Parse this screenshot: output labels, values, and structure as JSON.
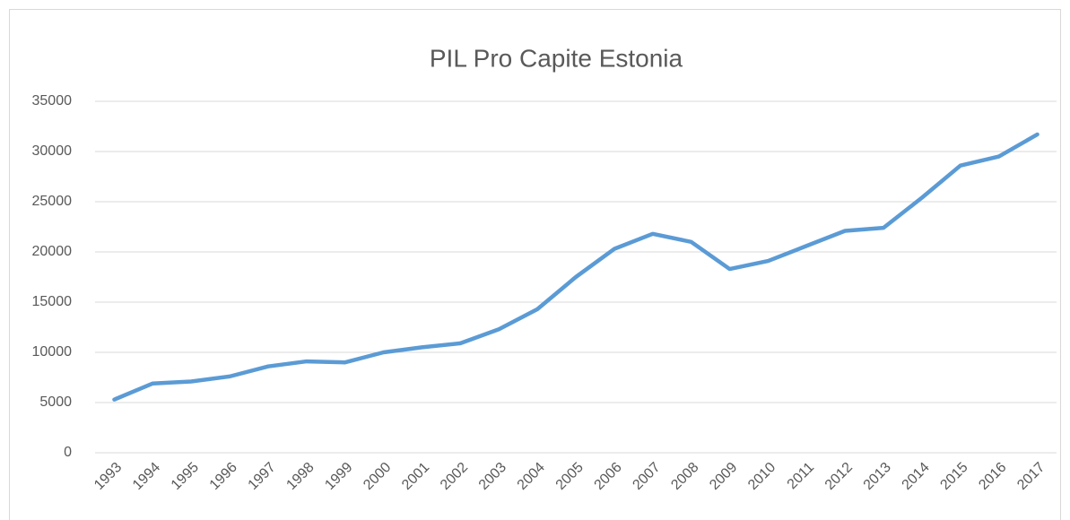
{
  "chart_data": {
    "type": "line",
    "title": "PIL Pro Capite Estonia",
    "categories": [
      "1993",
      "1994",
      "1995",
      "1996",
      "1997",
      "1998",
      "1999",
      "2000",
      "2001",
      "2002",
      "2003",
      "2004",
      "2005",
      "2006",
      "2007",
      "2008",
      "2009",
      "2010",
      "2011",
      "2012",
      "2013",
      "2014",
      "2015",
      "2016",
      "2017"
    ],
    "series": [
      {
        "name": "PIL Pro Capite",
        "color": "#5b9bd5",
        "values": [
          5300,
          6900,
          7100,
          7600,
          8600,
          9100,
          9000,
          10000,
          10500,
          10900,
          12300,
          14300,
          17500,
          20300,
          21800,
          21000,
          18300,
          19100,
          20600,
          22100,
          22400,
          25400,
          28600,
          29500,
          31700
        ]
      }
    ],
    "ylim": [
      0,
      35000
    ],
    "yticks": [
      0,
      5000,
      10000,
      15000,
      20000,
      25000,
      30000,
      35000
    ],
    "grid": true
  }
}
